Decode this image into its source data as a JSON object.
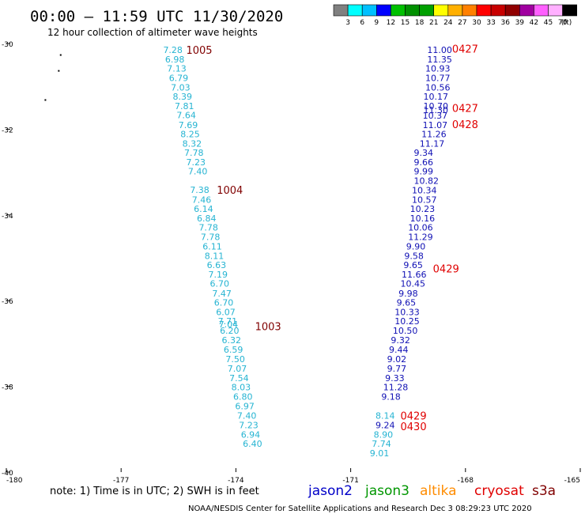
{
  "header": {
    "title": "00:00 – 11:59 UTC 11/30/2020",
    "subtitle": "12 hour collection of altimeter wave heights"
  },
  "colorbar": {
    "swatches": [
      "#808080",
      "#00ffff",
      "#00c0ff",
      "#0000ff",
      "#00c000",
      "#009000",
      "#00a000",
      "#ffff00",
      "#ffb000",
      "#ff8000",
      "#ff0000",
      "#c80000",
      "#900000",
      "#a000a0",
      "#ff60ff",
      "#ffb0ff",
      "#000000"
    ],
    "labels": [
      "3",
      "6",
      "9",
      "12",
      "15",
      "18",
      "21",
      "24",
      "27",
      "30",
      "33",
      "36",
      "39",
      "42",
      "45",
      "70"
    ],
    "unit": "(ft)"
  },
  "footer": {
    "note": "note:  1) Time is in UTC;  2) SWH is in feet",
    "credit": "NOAA/NESDIS Center for Satellite Applications and Research   Dec  3 08:29:23 UTC 2020"
  },
  "satellites": [
    {
      "name": "jason2",
      "color": "#0000c8"
    },
    {
      "name": "jason3",
      "color": "#009600"
    },
    {
      "name": "altika",
      "color": "#ff8c00"
    },
    {
      "name": "cryosat",
      "color": "#e00000"
    },
    {
      "name": "s3a",
      "color": "#800000"
    }
  ],
  "chart_data": {
    "type": "scatter",
    "x_ticks": [
      "-180",
      "-177",
      "-174",
      "-171",
      "-168",
      "-165"
    ],
    "y_ticks": [
      "-30",
      "-32",
      "-34",
      "-36",
      "-38",
      "-40"
    ],
    "xlim": [
      -180,
      -165
    ],
    "ylim": [
      -40,
      -30
    ],
    "grid": false,
    "series": [
      {
        "name": "s3a",
        "color": "#26b4d2",
        "points": [
          {
            "lon": -175.9,
            "lat": -30.15,
            "swh": "7.28"
          },
          {
            "lon": -175.85,
            "lat": -30.37,
            "swh": "6.98"
          },
          {
            "lon": -175.8,
            "lat": -30.58,
            "swh": "7.13"
          },
          {
            "lon": -175.75,
            "lat": -30.8,
            "swh": "6.79"
          },
          {
            "lon": -175.7,
            "lat": -31.02,
            "swh": "7.03"
          },
          {
            "lon": -175.65,
            "lat": -31.24,
            "swh": "8.39"
          },
          {
            "lon": -175.6,
            "lat": -31.46,
            "swh": "7.81"
          },
          {
            "lon": -175.55,
            "lat": -31.67,
            "swh": "7.64"
          },
          {
            "lon": -175.5,
            "lat": -31.9,
            "swh": "7.69"
          },
          {
            "lon": -175.45,
            "lat": -32.11,
            "swh": "8.25"
          },
          {
            "lon": -175.4,
            "lat": -32.33,
            "swh": "8.32"
          },
          {
            "lon": -175.35,
            "lat": -32.55,
            "swh": "7.78"
          },
          {
            "lon": -175.3,
            "lat": -32.77,
            "swh": "7.23"
          },
          {
            "lon": -175.25,
            "lat": -32.98,
            "swh": "7.40"
          },
          {
            "lon": -175.2,
            "lat": -33.41,
            "swh": "7.38"
          },
          {
            "lon": -175.15,
            "lat": -33.64,
            "swh": "7.46"
          },
          {
            "lon": -175.1,
            "lat": -33.86,
            "swh": "6.14"
          },
          {
            "lon": -175.02,
            "lat": -34.08,
            "swh": "6.84"
          },
          {
            "lon": -174.97,
            "lat": -34.29,
            "swh": "7.78"
          },
          {
            "lon": -174.92,
            "lat": -34.51,
            "swh": "7.78"
          },
          {
            "lon": -174.87,
            "lat": -34.73,
            "swh": "6.11"
          },
          {
            "lon": -174.82,
            "lat": -34.95,
            "swh": "8.11"
          },
          {
            "lon": -174.76,
            "lat": -35.17,
            "swh": "6.63"
          },
          {
            "lon": -174.72,
            "lat": -35.39,
            "swh": "7.19"
          },
          {
            "lon": -174.68,
            "lat": -35.6,
            "swh": "6.70"
          },
          {
            "lon": -174.62,
            "lat": -35.83,
            "swh": "7.47"
          },
          {
            "lon": -174.57,
            "lat": -36.04,
            "swh": "6.70"
          },
          {
            "lon": -174.52,
            "lat": -36.26,
            "swh": "6.07"
          },
          {
            "lon": -174.47,
            "lat": -36.48,
            "swh": "7.71"
          },
          {
            "lon": -174.45,
            "lat": -36.55,
            "swh": "7.04"
          },
          {
            "lon": -174.42,
            "lat": -36.7,
            "swh": "6.20"
          },
          {
            "lon": -174.37,
            "lat": -36.92,
            "swh": "6.32"
          },
          {
            "lon": -174.32,
            "lat": -37.14,
            "swh": "6.59"
          },
          {
            "lon": -174.27,
            "lat": -37.36,
            "swh": "7.50"
          },
          {
            "lon": -174.22,
            "lat": -37.58,
            "swh": "7.07"
          },
          {
            "lon": -174.17,
            "lat": -37.8,
            "swh": "7.54"
          },
          {
            "lon": -174.12,
            "lat": -38.02,
            "swh": "8.03"
          },
          {
            "lon": -174.07,
            "lat": -38.24,
            "swh": "6.80"
          },
          {
            "lon": -174.02,
            "lat": -38.46,
            "swh": "6.97"
          },
          {
            "lon": -173.97,
            "lat": -38.68,
            "swh": "7.40"
          },
          {
            "lon": -173.92,
            "lat": -38.9,
            "swh": "7.23"
          },
          {
            "lon": -173.87,
            "lat": -39.12,
            "swh": "6.94"
          },
          {
            "lon": -173.82,
            "lat": -39.34,
            "swh": "6.40"
          }
        ]
      },
      {
        "name": "jason2",
        "color": "#1010b4",
        "points": [
          {
            "lon": -169.0,
            "lat": -30.15,
            "swh": "11.00"
          },
          {
            "lon": -169.0,
            "lat": -30.37,
            "swh": "11.35"
          },
          {
            "lon": -169.05,
            "lat": -30.58,
            "swh": "10.93"
          },
          {
            "lon": -169.05,
            "lat": -30.8,
            "swh": "10.77"
          },
          {
            "lon": -169.05,
            "lat": -31.02,
            "swh": "10.56"
          },
          {
            "lon": -169.1,
            "lat": -31.24,
            "swh": "10.17"
          },
          {
            "lon": -169.1,
            "lat": -31.46,
            "swh": "10.70"
          },
          {
            "lon": -169.1,
            "lat": -31.55,
            "swh": "11.30"
          },
          {
            "lon": -169.12,
            "lat": -31.68,
            "swh": "10.37"
          },
          {
            "lon": -169.12,
            "lat": -31.9,
            "swh": "11.07"
          },
          {
            "lon": -169.15,
            "lat": -32.11,
            "swh": "11.26"
          },
          {
            "lon": -169.2,
            "lat": -32.33,
            "swh": "11.17"
          },
          {
            "lon": -169.35,
            "lat": -32.55,
            "swh": "9.34"
          },
          {
            "lon": -169.35,
            "lat": -32.77,
            "swh": "9.66"
          },
          {
            "lon": -169.35,
            "lat": -32.98,
            "swh": "9.99"
          },
          {
            "lon": -169.35,
            "lat": -33.2,
            "swh": "10.82"
          },
          {
            "lon": -169.4,
            "lat": -33.42,
            "swh": "10.34"
          },
          {
            "lon": -169.4,
            "lat": -33.64,
            "swh": "10.57"
          },
          {
            "lon": -169.45,
            "lat": -33.86,
            "swh": "10.23"
          },
          {
            "lon": -169.45,
            "lat": -34.08,
            "swh": "10.16"
          },
          {
            "lon": -169.5,
            "lat": -34.29,
            "swh": "10.06"
          },
          {
            "lon": -169.5,
            "lat": -34.51,
            "swh": "11.29"
          },
          {
            "lon": -169.55,
            "lat": -34.73,
            "swh": "9.90"
          },
          {
            "lon": -169.6,
            "lat": -34.95,
            "swh": "9.58"
          },
          {
            "lon": -169.62,
            "lat": -35.17,
            "swh": "9.65"
          },
          {
            "lon": -169.67,
            "lat": -35.39,
            "swh": "11.66"
          },
          {
            "lon": -169.7,
            "lat": -35.6,
            "swh": "10.45"
          },
          {
            "lon": -169.75,
            "lat": -35.83,
            "swh": "9.98"
          },
          {
            "lon": -169.8,
            "lat": -36.04,
            "swh": "9.65"
          },
          {
            "lon": -169.85,
            "lat": -36.26,
            "swh": "10.33"
          },
          {
            "lon": -169.85,
            "lat": -36.48,
            "swh": "10.25"
          },
          {
            "lon": -169.9,
            "lat": -36.7,
            "swh": "10.50"
          },
          {
            "lon": -169.95,
            "lat": -36.92,
            "swh": "9.32"
          },
          {
            "lon": -170.0,
            "lat": -37.14,
            "swh": "9.44"
          },
          {
            "lon": -170.05,
            "lat": -37.36,
            "swh": "9.02"
          },
          {
            "lon": -170.05,
            "lat": -37.58,
            "swh": "9.77"
          },
          {
            "lon": -170.1,
            "lat": -37.8,
            "swh": "9.33"
          },
          {
            "lon": -170.15,
            "lat": -38.02,
            "swh": "11.28"
          },
          {
            "lon": -170.2,
            "lat": -38.24,
            "swh": "9.18"
          },
          {
            "lon": -170.35,
            "lat": -38.9,
            "swh": "9.24"
          }
        ]
      },
      {
        "name": "s3a-cyan",
        "color": "#26b4d2",
        "points": [
          {
            "lon": -170.35,
            "lat": -38.68,
            "swh": "8.14"
          },
          {
            "lon": -170.4,
            "lat": -39.12,
            "swh": "8.90"
          },
          {
            "lon": -170.45,
            "lat": -39.34,
            "swh": "7.74"
          },
          {
            "lon": -170.5,
            "lat": -39.56,
            "swh": "9.01"
          }
        ]
      }
    ],
    "time_labels": [
      {
        "text": "1005",
        "lon": -175.3,
        "lat": -30.15,
        "color": "#800000"
      },
      {
        "text": "1004",
        "lon": -174.5,
        "lat": -33.41,
        "color": "#800000"
      },
      {
        "text": "1003",
        "lon": -173.5,
        "lat": -36.6,
        "color": "#800000"
      },
      {
        "text": "0427",
        "lon": -168.35,
        "lat": -30.12,
        "color": "#e00000"
      },
      {
        "text": "0427",
        "lon": -168.35,
        "lat": -31.5,
        "color": "#e00000"
      },
      {
        "text": "0428",
        "lon": -168.35,
        "lat": -31.88,
        "color": "#e00000"
      },
      {
        "text": "0429",
        "lon": -168.85,
        "lat": -35.25,
        "color": "#e00000"
      },
      {
        "text": "0429",
        "lon": -169.7,
        "lat": -38.68,
        "color": "#e00000"
      },
      {
        "text": "0430",
        "lon": -169.7,
        "lat": -38.93,
        "color": "#e00000"
      }
    ],
    "map_specks": [
      {
        "lon": -178.6,
        "lat": -30.25
      },
      {
        "lon": -178.65,
        "lat": -30.62
      },
      {
        "lon": -179.0,
        "lat": -31.3
      }
    ]
  }
}
